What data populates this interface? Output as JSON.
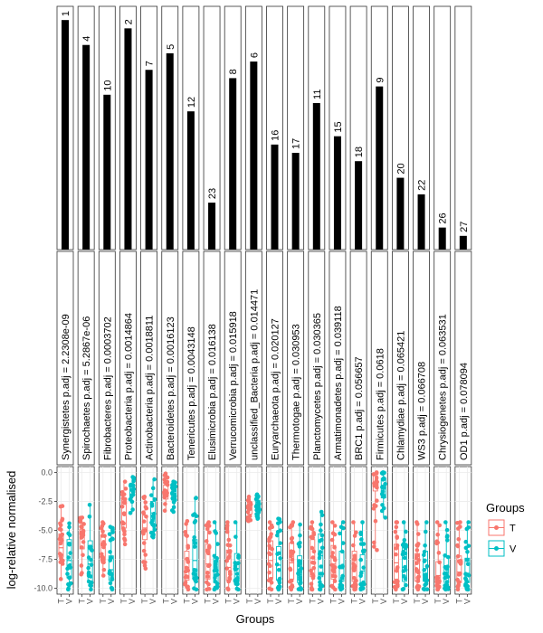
{
  "chart_data": {
    "type": "faceted-scatter-with-rank-bars",
    "xlabel": "Groups",
    "ylabel": "log-relative normalised",
    "ylim": [
      -10.5,
      0.5
    ],
    "yticks": [
      0.0,
      -2.5,
      -5.0,
      -7.5,
      -10.0
    ],
    "ytick_labels": [
      "0.0",
      "-2.5",
      "-5.0",
      "-7.5",
      "-10.0"
    ],
    "group_ticks": [
      "T",
      "V"
    ],
    "legend": {
      "title": "Groups",
      "placement": "right",
      "entries": [
        {
          "label": "T",
          "color": "#F8766D"
        },
        {
          "label": "V",
          "color": "#00BFC4"
        }
      ]
    },
    "bar_scale_max": 28,
    "facets": [
      {
        "taxon": "Synergistetes",
        "label": "Synergistetes p.adj = 2.2308e-09",
        "rank": 1,
        "rank_label": "1",
        "T": {
          "min": -9.2,
          "q1": -7.3,
          "median": -6.5,
          "q3": -5.3,
          "max": -2.9
        },
        "V": {
          "min": -10.1,
          "q1": -9.1,
          "median": -7.6,
          "q3": -5.8,
          "max": -4.4
        }
      },
      {
        "taxon": "Spirochaetes",
        "label": "Spirochaetes p.adj = 5.2867e-06",
        "rank": 4,
        "rank_label": "4",
        "T": {
          "min": -8.8,
          "q1": -6.6,
          "median": -5.6,
          "q3": -4.9,
          "max": -3.9
        },
        "V": {
          "min": -10.1,
          "q1": -9.4,
          "median": -7.9,
          "q3": -5.9,
          "max": -2.8
        }
      },
      {
        "taxon": "Fibrobacteres",
        "label": "Fibrobacteres p.adj = 0.0003702",
        "rank": 10,
        "rank_label": "10",
        "T": {
          "min": -8.9,
          "q1": -7.6,
          "median": -6.3,
          "q3": -5.4,
          "max": -4.3
        },
        "V": {
          "min": -10.1,
          "q1": -9.3,
          "median": -8.4,
          "q3": -7.2,
          "max": -4.7
        }
      },
      {
        "taxon": "Proteobacteria",
        "label": "Proteobacteria p.adj = 0.0014864",
        "rank": 2,
        "rank_label": "2",
        "T": {
          "min": -6.2,
          "q1": -4.8,
          "median": -3.5,
          "q3": -2.4,
          "max": -0.8
        },
        "V": {
          "min": -3.5,
          "q1": -2.0,
          "median": -1.5,
          "q3": -1.0,
          "max": -0.4
        }
      },
      {
        "taxon": "Actinobacteria",
        "label": "Actinobacteria p.adj = 0.0018811",
        "rank": 7,
        "rank_label": "7",
        "T": {
          "min": -8.3,
          "q1": -5.8,
          "median": -4.8,
          "q3": -3.7,
          "max": -2.1
        },
        "V": {
          "min": -5.6,
          "q1": -4.4,
          "median": -3.5,
          "q3": -2.5,
          "max": -0.6
        }
      },
      {
        "taxon": "Bacteroidetes",
        "label": "Bacteroidetes p.adj = 0.0016123",
        "rank": 5,
        "rank_label": "5",
        "T": {
          "min": -3.3,
          "q1": -2.3,
          "median": -1.7,
          "q3": -1.1,
          "max": -0.1
        },
        "V": {
          "min": -3.4,
          "q1": -2.4,
          "median": -1.8,
          "q3": -1.2,
          "max": -0.8
        }
      },
      {
        "taxon": "Tenericutes",
        "label": "Tenericutes p.adj = 0.0043148",
        "rank": 12,
        "rank_label": "12",
        "T": {
          "min": -10.1,
          "q1": -9.3,
          "median": -8.2,
          "q3": -6.8,
          "max": -4.2
        },
        "V": {
          "min": -10.1,
          "q1": -9.0,
          "median": -7.6,
          "q3": -5.8,
          "max": -2.2
        }
      },
      {
        "taxon": "Elusimicrobia",
        "label": "Elusimicrobia p.adj = 0.016138",
        "rank": 23,
        "rank_label": "23",
        "T": {
          "min": -10.1,
          "q1": -9.2,
          "median": -7.9,
          "q3": -6.2,
          "max": -4.3
        },
        "V": {
          "min": -10.1,
          "q1": -9.5,
          "median": -8.6,
          "q3": -7.4,
          "max": -4.3
        }
      },
      {
        "taxon": "Verrucomicrobia",
        "label": "Verrucomicrobia p.adj = 0.015918",
        "rank": 8,
        "rank_label": "8",
        "T": {
          "min": -10.1,
          "q1": -9.3,
          "median": -8.2,
          "q3": -6.7,
          "max": -4.3
        },
        "V": {
          "min": -10.1,
          "q1": -9.4,
          "median": -8.3,
          "q3": -7.0,
          "max": -4.3
        }
      },
      {
        "taxon": "unclassified_Bacteria",
        "label": "unclassified_Bacteria p.adj = 0.014471",
        "rank": 6,
        "rank_label": "6",
        "T": {
          "min": -4.2,
          "q1": -3.6,
          "median": -3.1,
          "q3": -2.6,
          "max": -2.1
        },
        "V": {
          "min": -4.0,
          "q1": -3.3,
          "median": -2.8,
          "q3": -2.4,
          "max": -1.9
        }
      },
      {
        "taxon": "Euryarchaeota",
        "label": "Euryarchaeota p.adj = 0.020127",
        "rank": 16,
        "rank_label": "16",
        "T": {
          "min": -10.1,
          "q1": -9.1,
          "median": -7.6,
          "q3": -5.9,
          "max": -4.3
        },
        "V": {
          "min": -10.1,
          "q1": -9.3,
          "median": -8.0,
          "q3": -6.4,
          "max": -4.0
        }
      },
      {
        "taxon": "Thermotogae",
        "label": "Thermotogae p.adj = 0.030953",
        "rank": 17,
        "rank_label": "17",
        "T": {
          "min": -10.1,
          "q1": -9.2,
          "median": -7.8,
          "q3": -6.1,
          "max": -4.3
        },
        "V": {
          "min": -10.1,
          "q1": -9.5,
          "median": -8.6,
          "q3": -7.2,
          "max": -4.5
        }
      },
      {
        "taxon": "Planctomycetes",
        "label": "Planctomycetes p.adj = 0.030365",
        "rank": 11,
        "rank_label": "11",
        "T": {
          "min": -10.1,
          "q1": -9.0,
          "median": -7.4,
          "q3": -5.8,
          "max": -4.3
        },
        "V": {
          "min": -10.1,
          "q1": -9.0,
          "median": -7.2,
          "q3": -5.3,
          "max": -3.4
        }
      },
      {
        "taxon": "Armatimonadetes",
        "label": "Armatimonadetes p.adj = 0.039118",
        "rank": 15,
        "rank_label": "15",
        "T": {
          "min": -10.1,
          "q1": -9.2,
          "median": -7.9,
          "q3": -6.3,
          "max": -4.3
        },
        "V": {
          "min": -10.1,
          "q1": -9.4,
          "median": -8.3,
          "q3": -6.8,
          "max": -4.3
        }
      },
      {
        "taxon": "BRC1",
        "label": "BRC1 p.adj = 0.056657",
        "rank": 18,
        "rank_label": "18",
        "T": {
          "min": -10.1,
          "q1": -9.4,
          "median": -8.3,
          "q3": -6.8,
          "max": -4.3
        },
        "V": {
          "min": -10.1,
          "q1": -9.5,
          "median": -8.5,
          "q3": -7.1,
          "max": -4.3
        }
      },
      {
        "taxon": "Firmicutes",
        "label": "Firmicutes p.adj = 0.0618",
        "rank": 9,
        "rank_label": "9",
        "T": {
          "min": -6.7,
          "q1": -1.6,
          "median": -0.9,
          "q3": -0.3,
          "max": 0.0
        },
        "V": {
          "min": -3.9,
          "q1": -2.2,
          "median": -1.1,
          "q3": -0.5,
          "max": 0.0
        }
      },
      {
        "taxon": "Chlamydiae",
        "label": "Chlamydiae p.adj = 0.065421",
        "rank": 20,
        "rank_label": "20",
        "T": {
          "min": -10.1,
          "q1": -9.2,
          "median": -7.8,
          "q3": -6.2,
          "max": -4.3
        },
        "V": {
          "min": -10.1,
          "q1": -9.4,
          "median": -8.2,
          "q3": -6.5,
          "max": -4.3
        }
      },
      {
        "taxon": "WS3",
        "label": "WS3 p.adj = 0.066708",
        "rank": 22,
        "rank_label": "22",
        "T": {
          "min": -10.1,
          "q1": -9.4,
          "median": -8.4,
          "q3": -7.0,
          "max": -4.3
        },
        "V": {
          "min": -10.1,
          "q1": -9.4,
          "median": -8.3,
          "q3": -6.8,
          "max": -4.3
        }
      },
      {
        "taxon": "Chrysiogenetes",
        "label": "Chrysiogenetes p.adj = 0.063531",
        "rank": 26,
        "rank_label": "26",
        "T": {
          "min": -10.1,
          "q1": -9.6,
          "median": -8.9,
          "q3": -7.7,
          "max": -4.3
        },
        "V": {
          "min": -10.1,
          "q1": -9.5,
          "median": -8.6,
          "q3": -7.3,
          "max": -4.3
        }
      },
      {
        "taxon": "OD1",
        "label": "OD1 p.adj = 0.078094",
        "rank": 27,
        "rank_label": "27",
        "T": {
          "min": -10.1,
          "q1": -9.5,
          "median": -8.6,
          "q3": -7.2,
          "max": -4.3
        },
        "V": {
          "min": -10.1,
          "q1": -9.5,
          "median": -8.7,
          "q3": -7.4,
          "max": -4.3
        }
      }
    ]
  }
}
